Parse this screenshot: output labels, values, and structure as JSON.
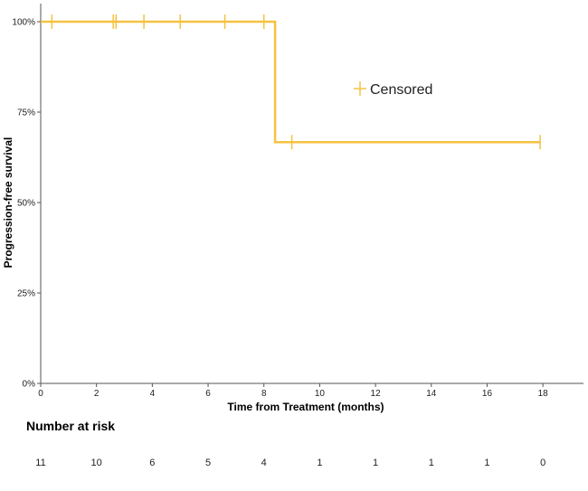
{
  "chart_data": {
    "type": "line",
    "xlabel": "Time from Treatment (months)",
    "ylabel": "Progression-free survival",
    "xlim": [
      0,
      19
    ],
    "ylim": [
      0,
      1
    ],
    "xticks": [
      0,
      2,
      4,
      6,
      8,
      10,
      12,
      14,
      16,
      18
    ],
    "yticks": [
      0,
      0.25,
      0.5,
      0.75,
      1.0
    ],
    "ytick_labels": [
      "0%",
      "25%",
      "50%",
      "75%",
      "100%"
    ],
    "color": "#F5C242",
    "series": [
      {
        "step_x": [
          0,
          8.4,
          8.4,
          17.9
        ],
        "step_y": [
          1.0,
          1.0,
          0.667,
          0.667
        ]
      }
    ],
    "censored": [
      {
        "x": 0.4,
        "y": 1.0
      },
      {
        "x": 2.6,
        "y": 1.0
      },
      {
        "x": 2.7,
        "y": 1.0
      },
      {
        "x": 3.7,
        "y": 1.0
      },
      {
        "x": 5.0,
        "y": 1.0
      },
      {
        "x": 6.6,
        "y": 1.0
      },
      {
        "x": 8.0,
        "y": 1.0
      },
      {
        "x": 9.0,
        "y": 0.667
      },
      {
        "x": 17.9,
        "y": 0.667
      }
    ],
    "legend": {
      "label": "Censored",
      "placement": "top-right"
    },
    "risk_table": {
      "title": "Number at risk",
      "times": [
        0,
        2,
        4,
        6,
        8,
        10,
        12,
        14,
        16,
        18
      ],
      "counts": [
        11,
        10,
        6,
        5,
        4,
        1,
        1,
        1,
        1,
        0
      ]
    }
  }
}
